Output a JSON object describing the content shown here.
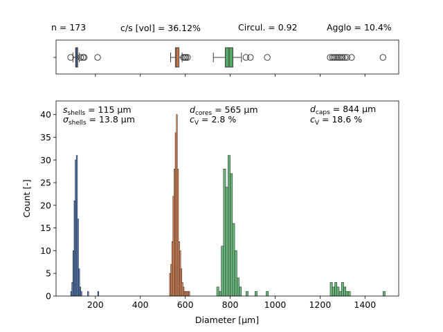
{
  "header": {
    "n": "n = 173",
    "cs": "c/s [vol] = 36.12%",
    "circ": "Circul. = 0.92",
    "agglo": "Agglo = 10.4%"
  },
  "annotations": {
    "shells": {
      "line1_main": "s",
      "line1_sub": "shells",
      "line1_rest": " = 115 µm",
      "line2_main": "σ",
      "line2_sub": "shells",
      "line2_rest": " = 13.8 µm"
    },
    "cores": {
      "line1_main": "d",
      "line1_sub": "cores",
      "line1_rest": " = 565 µm",
      "line2_main": "c",
      "line2_sub": "V",
      "line2_rest": " = 2.8 %"
    },
    "caps": {
      "line1_main": "d",
      "line1_sub": "caps",
      "line1_rest": " = 844 µm",
      "line2_main": "c",
      "line2_sub": "V",
      "line2_rest": " = 18.6 %"
    }
  },
  "chart_data": [
    {
      "type": "boxplot",
      "xlim": [
        25,
        1550
      ],
      "colors": {
        "shells": "#4c72b0",
        "cores": "#dd8452",
        "caps": "#55a868"
      },
      "series": [
        {
          "name": "shells",
          "q1": 112,
          "median": 115,
          "q3": 120,
          "whisker_low": 100,
          "whisker_high": 128,
          "outliers": [
            90,
            135,
            145,
            150,
            210
          ]
        },
        {
          "name": "cores",
          "q1": 556,
          "median": 562,
          "q3": 572,
          "whisker_low": 535,
          "whisker_high": 586,
          "outliers": [
            592,
            598,
            603,
            610
          ]
        },
        {
          "name": "caps",
          "q1": 778,
          "median": 795,
          "q3": 812,
          "whisker_low": 725,
          "whisker_high": 850,
          "outliers": [
            870,
            890,
            965,
            1245,
            1255,
            1262,
            1270,
            1278,
            1285,
            1292,
            1300,
            1310,
            1320,
            1340,
            1480
          ]
        }
      ]
    },
    {
      "type": "histogram",
      "xlabel": "Diameter [µm]",
      "ylabel": "Count [-]",
      "xlim": [
        25,
        1550
      ],
      "ylim": [
        0,
        43
      ],
      "xticks": [
        200,
        400,
        600,
        800,
        1000,
        1200,
        1400
      ],
      "yticks": [
        0,
        5,
        10,
        15,
        20,
        25,
        30,
        35,
        40
      ],
      "series": [
        {
          "name": "shells",
          "bin_width": 5,
          "bins": [
            [
              90,
              1
            ],
            [
              95,
              3
            ],
            [
              100,
              10
            ],
            [
              105,
              21
            ],
            [
              110,
              30
            ],
            [
              115,
              31
            ],
            [
              120,
              17
            ],
            [
              125,
              6
            ],
            [
              130,
              2
            ],
            [
              135,
              1
            ],
            [
              165,
              1
            ],
            [
              210,
              1
            ]
          ]
        },
        {
          "name": "cores",
          "bin_width": 5,
          "bins": [
            [
              530,
              5
            ],
            [
              535,
              7
            ],
            [
              540,
              12
            ],
            [
              545,
              22
            ],
            [
              550,
              28
            ],
            [
              555,
              36
            ],
            [
              560,
              40
            ],
            [
              565,
              28
            ],
            [
              570,
              12
            ],
            [
              575,
              10
            ],
            [
              580,
              6
            ],
            [
              585,
              3
            ],
            [
              590,
              2
            ],
            [
              595,
              1
            ],
            [
              600,
              1
            ],
            [
              605,
              1
            ],
            [
              610,
              1
            ],
            [
              615,
              1
            ]
          ]
        },
        {
          "name": "caps",
          "bin_width": 10,
          "bins": [
            [
              740,
              2
            ],
            [
              750,
              1
            ],
            [
              760,
              11
            ],
            [
              770,
              28
            ],
            [
              780,
              24
            ],
            [
              790,
              31
            ],
            [
              800,
              27
            ],
            [
              810,
              16
            ],
            [
              820,
              10
            ],
            [
              830,
              4
            ],
            [
              840,
              2
            ],
            [
              870,
              1
            ],
            [
              910,
              1
            ],
            [
              960,
              1
            ],
            [
              1245,
              3
            ],
            [
              1255,
              2
            ],
            [
              1265,
              3
            ],
            [
              1275,
              2
            ],
            [
              1285,
              1
            ],
            [
              1295,
              3
            ],
            [
              1305,
              2
            ],
            [
              1315,
              1
            ],
            [
              1325,
              1
            ],
            [
              1480,
              1
            ]
          ]
        }
      ]
    }
  ]
}
